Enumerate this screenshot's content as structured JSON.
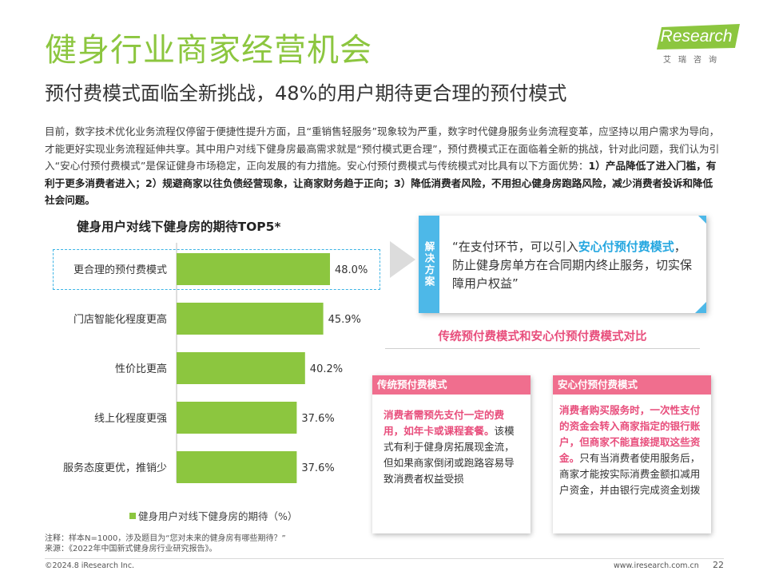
{
  "header": {
    "title": "健身行业商家经营机会",
    "subtitle": "预付费模式面临全新挑战，48%的用户期待更合理的预付模式",
    "logo_text": "iResearch",
    "logo_sub": "艾瑞咨询"
  },
  "intro": {
    "normal": "目前，数字技术优化业务流程仅停留于便捷性提升方面，且“重销售轻服务”现象较为严重，数字时代健身服务业务流程变革，应坚持以用户需求为导向，才能更好实现业务流程延伸共享。其中用户对线下健身房最高需求就是“预付模式更合理”，预付费模式正在面临着全新的挑战，针对此问题，我们认为引入“安心付预付费模式”是保证健身市场稳定，正向发展的有力措施。安心付预付费模式与传统模式对比具有以下方面优势：",
    "bold": "1）产品降低了进入门槛，有利于更多消费者进入；2）规避商家以往负债经营现象，让商家财务趋于正向；3）降低消费者风险，不用担心健身房跑路风险，减少消费者投诉和降低社会问题。"
  },
  "chart_data": {
    "type": "bar",
    "orientation": "horizontal",
    "title": "健身用户对线下健身房的期待TOP5*",
    "categories": [
      "更合理的预付费模式",
      "门店智能化程度更高",
      "性价比更高",
      "线上化程度更强",
      "服务态度更优，推销少"
    ],
    "values": [
      48.0,
      45.9,
      40.2,
      37.6,
      37.6
    ],
    "value_labels": [
      "48.0%",
      "45.9%",
      "40.2%",
      "37.6%",
      "37.6%"
    ],
    "series": [
      {
        "name": "健身用户对线下健身房的期待（%）",
        "values": [
          48.0,
          45.9,
          40.2,
          37.6,
          37.6
        ]
      }
    ],
    "legend": "bottom",
    "grid": false,
    "xlim": [
      0,
      50
    ],
    "color": "#8cc63f",
    "highlight_category": "更合理的预付费模式"
  },
  "legend_label": "健身用户对线下健身房的期待（%）",
  "solution": {
    "tab": "解决方案",
    "text_before": "“在支付环节，可以引入",
    "highlight": "安心付预付费模式",
    "text_after": "，防止健身房单方在合同期内终止服务，切实保障用户权益”"
  },
  "comparison": {
    "title": "传统预付费模式和安心付预付费模式对比",
    "traditional": {
      "head": "传统预付费模式",
      "pink": "消费者需预先支付一定的费用，如年卡或课程套餐。",
      "text": "该模式有利于健身房拓展现金流，但如果商家倒闭或跑路容易导致消费者权益受损"
    },
    "anxinfu": {
      "head": "安心付预付费模式",
      "pink": "消费者购买服务时，一次性支付的资金会转入商家指定的银行账户，但商家不能直接提取这些资金。",
      "text": "只有当消费者使用服务后，商家才能按实际消费金额扣减用户资金，并由银行完成资金划拨"
    }
  },
  "footer": {
    "note": "注释：样本N=1000，涉及题目为“您对未来的健身房有哪些期待？”",
    "source": "来源：《2022年中国新式健身房行业研究报告》。",
    "copyright": "©2024.8 iResearch Inc.",
    "site": "www.iresearch.com.cn",
    "page": "22"
  },
  "colors": {
    "brand_green": "#8cc63f",
    "accent_blue": "#4db8e8",
    "accent_pink": "#f06e8e"
  }
}
